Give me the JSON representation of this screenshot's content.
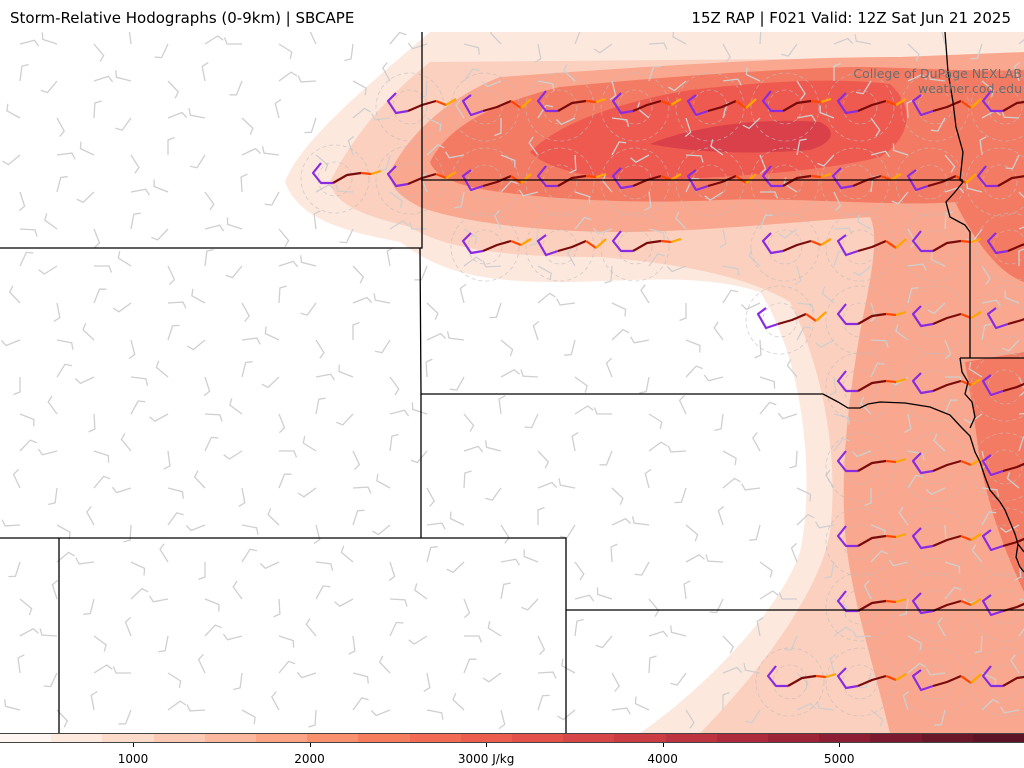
{
  "header": {
    "title_left": "Storm-Relative Hodographs (0-9km) | SBCAPE",
    "title_right": "15Z RAP | F021 Valid: 12Z Sat Jun 21 2025"
  },
  "credits": {
    "line1": "College of DuPage NEXLAB",
    "line2": "weather.cod.edu"
  },
  "colorbar": {
    "unit": "J/kg",
    "ticks": [
      {
        "value": 1000,
        "label": "1000"
      },
      {
        "value": 2000,
        "label": "2000"
      },
      {
        "value": 3000,
        "label": "3000 J/kg"
      },
      {
        "value": 4000,
        "label": "4000"
      },
      {
        "value": 5000,
        "label": "5000"
      }
    ],
    "colors": [
      "#fff6f1",
      "#fee9de",
      "#fddbcb",
      "#fccab4",
      "#fcb89e",
      "#fba586",
      "#f9916f",
      "#f67e5f",
      "#f26c55",
      "#ec5d4e",
      "#e3514a",
      "#d84747",
      "#cb3d43",
      "#bd3340",
      "#ad2b3c",
      "#9d2337",
      "#8c1d32",
      "#7b1a2e",
      "#6a172a",
      "#5c1526"
    ]
  },
  "map": {
    "cape_colors": {
      "very_light": "#fde8de",
      "light": "#fbd0bf",
      "medium": "#f9a88f",
      "strong": "#f47b63",
      "core": "#ee5a4f",
      "max": "#d9404a"
    },
    "hodograph_colors": {
      "low": "#7a0b0b",
      "mid": "#ff4500",
      "upper": "#ffa500",
      "top": "#8a2be2"
    }
  }
}
